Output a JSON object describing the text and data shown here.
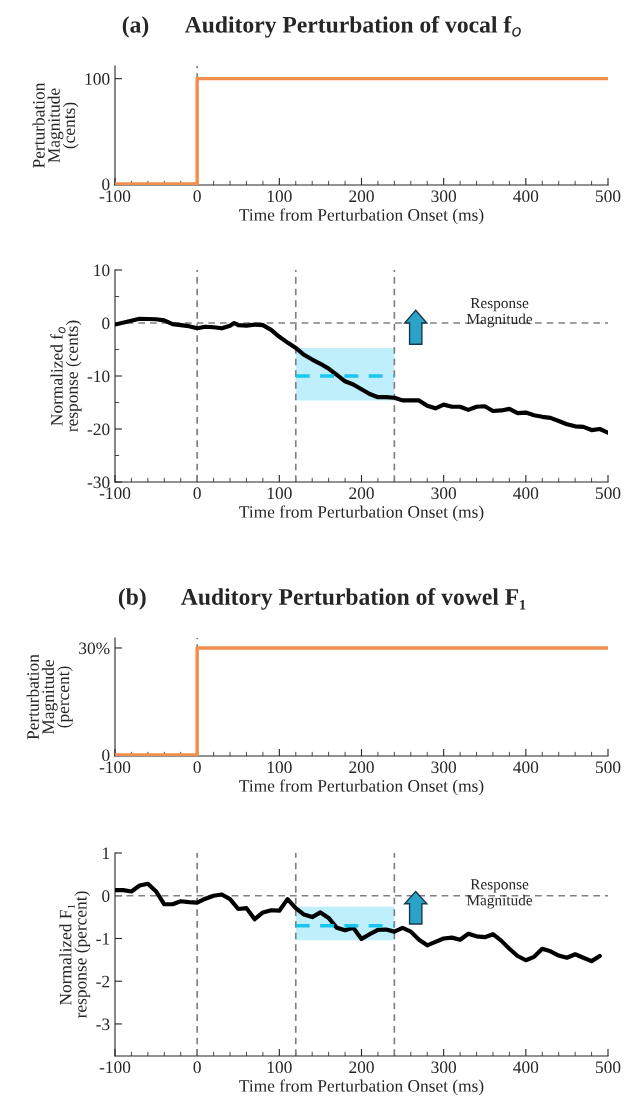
{
  "chart_data": [
    {
      "type": "line",
      "title": "(a)      Auditory Perturbation of vocal f$_{o}$",
      "xlabel": "Time from Perturbation Onset (ms)",
      "ylabel": "Perturbation\nMagnitude\n(cents)",
      "xlim": [
        -100,
        500
      ],
      "xticks": [
        -100,
        0,
        100,
        200,
        300,
        400,
        500
      ],
      "ylim": [
        -1,
        112
      ],
      "yticks": [
        0,
        100
      ],
      "series": [
        {
          "x": [
            -100,
            0,
            0,
            500
          ],
          "values": [
            0,
            0,
            100,
            100
          ],
          "color": "#f28e4b"
        }
      ],
      "ref_lines": [
        {
          "axis": "x",
          "value": 0,
          "color": "#808080",
          "line_style": "dashed"
        }
      ],
      "grid": false,
      "legend": false
    },
    {
      "type": "line",
      "xlabel": "Time from Perturbation Onset (ms)",
      "ylabel": "Normalized f$_{o}$\nresponse (cents)",
      "xlim": [
        -100,
        500
      ],
      "xticks": [
        -100,
        0,
        100,
        200,
        300,
        400,
        500
      ],
      "ylim": [
        -30,
        10
      ],
      "yticks": [
        -30,
        {
          "value": -25,
          "label": null
        },
        -20,
        {
          "value": -15,
          "label": null
        },
        -10,
        {
          "value": -5,
          "label": null
        },
        0,
        {
          "value": 5,
          "label": null
        },
        10
      ],
      "series": [
        {
          "x": [
            -100,
            -70,
            -50,
            -40,
            -30,
            -10,
            0,
            10,
            20,
            30,
            40,
            45,
            50,
            60,
            70,
            80,
            90,
            100,
            110,
            120,
            130,
            140,
            150,
            160,
            170,
            180,
            190,
            200,
            210,
            220,
            230,
            240,
            250,
            260,
            270,
            280,
            290,
            300,
            310,
            320,
            330,
            340,
            350,
            360,
            370,
            380,
            390,
            400,
            410,
            420,
            430,
            440,
            450,
            460,
            470,
            480,
            490,
            500
          ],
          "values": [
            -0.3,
            0.8,
            0.7,
            0.5,
            -0.2,
            -0.6,
            -1.0,
            -0.7,
            -0.8,
            -1.0,
            -0.5,
            0,
            -0.4,
            -0.5,
            -0.3,
            -0.4,
            -1.3,
            -2.6,
            -3.7,
            -4.7,
            -6.0,
            -6.9,
            -7.7,
            -8.6,
            -9.8,
            -11.0,
            -11.6,
            -12.5,
            -13.4,
            -14.0,
            -14.0,
            -14.1,
            -14.6,
            -14.6,
            -14.6,
            -15.6,
            -16.1,
            -15.4,
            -15.8,
            -15.8,
            -16.4,
            -15.8,
            -15.7,
            -16.6,
            -16.5,
            -16.2,
            -17.0,
            -16.9,
            -17.4,
            -17.7,
            -17.9,
            -18.5,
            -19.1,
            -19.5,
            -19.6,
            -20.2,
            -20.0,
            -20.7
          ],
          "color": "#000000"
        },
        {
          "x": [
            120,
            240
          ],
          "values": [
            -10,
            -10
          ],
          "color": "#1ac6f0",
          "line_style": "dashed",
          "lower": [
            -14.6,
            -14.6
          ],
          "upper": [
            -4.7,
            -4.7
          ]
        }
      ],
      "ref_lines": [
        {
          "axis": "y",
          "value": 0,
          "color": "#808080",
          "line_style": "dashed"
        },
        {
          "axis": "x",
          "value": 0,
          "color": "#808080",
          "line_style": "dashed"
        },
        {
          "axis": "x",
          "value": 120,
          "color": "#808080",
          "line_style": "dashed"
        },
        {
          "axis": "x",
          "value": 240,
          "color": "#808080",
          "line_style": "dashed"
        }
      ],
      "annotations": [
        "Response\nMagnitude"
      ],
      "grid": false,
      "legend": false
    },
    {
      "type": "line",
      "title": "(b)      Auditory Perturbation of vowel F₁",
      "xlabel": "Time from Perturbation Onset (ms)",
      "ylabel": "Perturbation\nMagnitude\n(percent)",
      "xlim": [
        -100,
        500
      ],
      "xticks": [
        -100,
        0,
        100,
        200,
        300,
        400,
        500
      ],
      "ylim": [
        -0.3,
        32.8
      ],
      "yticks": [
        0,
        {
          "value": 30,
          "label": "30%"
        }
      ],
      "series": [
        {
          "x": [
            -100,
            0,
            0,
            500
          ],
          "values": [
            0,
            0,
            30,
            30
          ],
          "color": "#f28e4b"
        }
      ],
      "ref_lines": [
        {
          "axis": "x",
          "value": 0,
          "color": "#808080",
          "line_style": "dashed"
        }
      ],
      "grid": false,
      "legend": false
    },
    {
      "type": "line",
      "xlabel": "Time from Perturbation Onset (ms)",
      "ylabel": "Normalized F₁\nresponse (percent)",
      "xlim": [
        -100,
        500
      ],
      "xticks": [
        -100,
        0,
        100,
        200,
        300,
        400,
        500
      ],
      "ylim": [
        -3.75,
        1
      ],
      "yticks": [
        -3,
        -2,
        -1,
        0,
        1
      ],
      "series": [
        {
          "x": [
            -100,
            -90,
            -80,
            -70,
            -60,
            -50,
            -40,
            -30,
            -20,
            -10,
            0,
            10,
            20,
            30,
            40,
            50,
            60,
            70,
            80,
            90,
            100,
            110,
            120,
            130,
            140,
            150,
            160,
            170,
            180,
            190,
            200,
            210,
            220,
            230,
            240,
            250,
            260,
            270,
            280,
            290,
            300,
            310,
            320,
            330,
            340,
            350,
            360,
            370,
            380,
            390,
            400,
            410,
            420,
            430,
            440,
            450,
            460,
            470,
            480,
            490
          ],
          "values": [
            0.13,
            0.13,
            0.1,
            0.24,
            0.28,
            0.1,
            -0.2,
            -0.2,
            -0.13,
            -0.15,
            -0.16,
            -0.07,
            0.0,
            0.03,
            -0.08,
            -0.31,
            -0.29,
            -0.55,
            -0.39,
            -0.34,
            -0.35,
            -0.08,
            -0.29,
            -0.44,
            -0.5,
            -0.39,
            -0.52,
            -0.75,
            -0.81,
            -0.75,
            -1.01,
            -0.9,
            -0.8,
            -0.79,
            -0.84,
            -0.75,
            -0.84,
            -1.03,
            -1.16,
            -1.08,
            -1.0,
            -0.98,
            -1.03,
            -0.89,
            -0.95,
            -0.97,
            -0.9,
            -1.05,
            -1.24,
            -1.41,
            -1.51,
            -1.43,
            -1.24,
            -1.3,
            -1.4,
            -1.45,
            -1.37,
            -1.45,
            -1.53,
            -1.41
          ],
          "color": "#000000"
        },
        {
          "x": [
            120,
            240
          ],
          "values": [
            -0.7,
            -0.7
          ],
          "color": "#1ac6f0",
          "line_style": "dashed",
          "lower": [
            -1.04,
            -1.04
          ],
          "upper": [
            -0.26,
            -0.26
          ]
        }
      ],
      "ref_lines": [
        {
          "axis": "y",
          "value": 0,
          "color": "#808080",
          "line_style": "dashed"
        },
        {
          "axis": "x",
          "value": 0,
          "color": "#808080",
          "line_style": "dashed"
        },
        {
          "axis": "x",
          "value": 120,
          "color": "#808080",
          "line_style": "dashed"
        },
        {
          "axis": "x",
          "value": 240,
          "color": "#808080",
          "line_style": "dashed"
        }
      ],
      "annotations": [
        "Response\nMagnitude"
      ],
      "grid": false,
      "legend": false
    }
  ]
}
